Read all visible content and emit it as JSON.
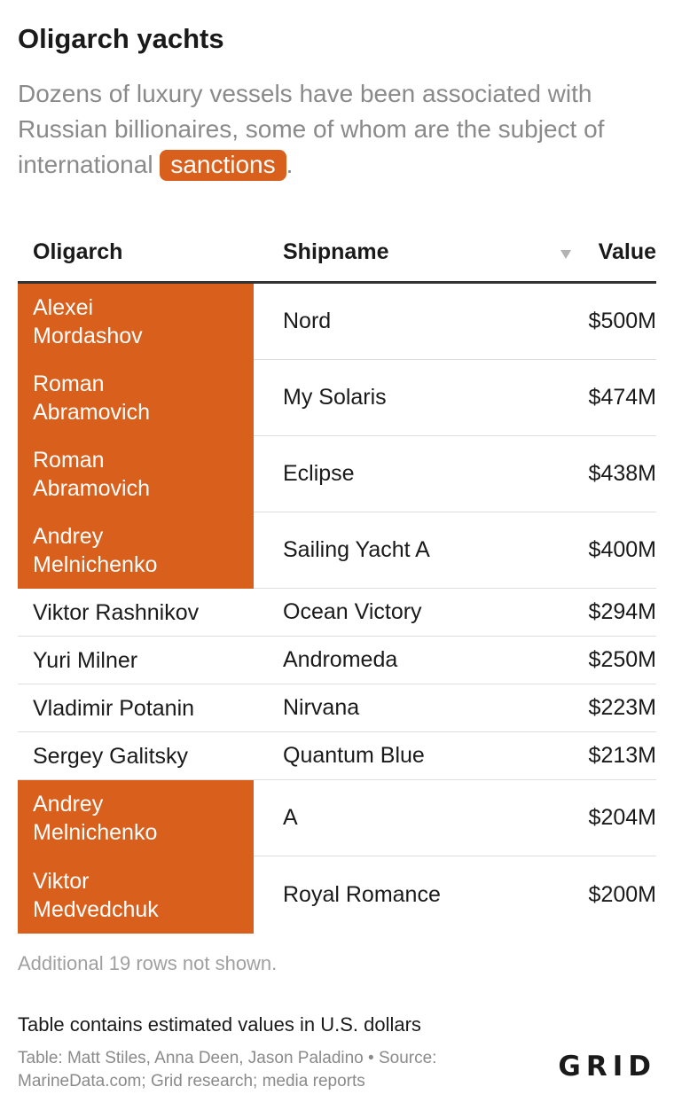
{
  "header": {
    "title": "Oligarch yachts",
    "subtitle_before": "Dozens of luxury vessels have been associated with Russian billionaires, some of whom are the subject of international ",
    "subtitle_highlight": "sanctions",
    "subtitle_after": "."
  },
  "colors": {
    "highlight": "#d95f1c",
    "text": "#1a1a1a",
    "muted": "#8a8a8a"
  },
  "chart_data": {
    "type": "table",
    "columns": [
      "Oligarch",
      "Shipname",
      "Value"
    ],
    "sort_indicator": "sort-down-icon",
    "rows": [
      {
        "oligarch": "Alexei Mordashov",
        "line1": "Alexei",
        "line2": "Mordashov",
        "ship": "Nord",
        "value": "$500M",
        "sanctioned": true
      },
      {
        "oligarch": "Roman Abramovich",
        "line1": "Roman",
        "line2": "Abramovich",
        "ship": "My Solaris",
        "value": "$474M",
        "sanctioned": true
      },
      {
        "oligarch": "Roman Abramovich",
        "line1": "Roman",
        "line2": "Abramovich",
        "ship": "Eclipse",
        "value": "$438M",
        "sanctioned": true
      },
      {
        "oligarch": "Andrey Melnichenko",
        "line1": "Andrey",
        "line2": "Melnichenko",
        "ship": "Sailing Yacht A",
        "value": "$400M",
        "sanctioned": true
      },
      {
        "oligarch": "Viktor Rashnikov",
        "line1": "Viktor Rashnikov",
        "line2": "",
        "ship": "Ocean Victory",
        "value": "$294M",
        "sanctioned": false
      },
      {
        "oligarch": "Yuri Milner",
        "line1": "Yuri Milner",
        "line2": "",
        "ship": "Andromeda",
        "value": "$250M",
        "sanctioned": false
      },
      {
        "oligarch": "Vladimir Potanin",
        "line1": "Vladimir Potanin",
        "line2": "",
        "ship": "Nirvana",
        "value": "$223M",
        "sanctioned": false
      },
      {
        "oligarch": "Sergey Galitsky",
        "line1": "Sergey Galitsky",
        "line2": "",
        "ship": "Quantum Blue",
        "value": "$213M",
        "sanctioned": false
      },
      {
        "oligarch": "Andrey Melnichenko",
        "line1": "Andrey",
        "line2": "Melnichenko",
        "ship": "A",
        "value": "$204M",
        "sanctioned": true
      },
      {
        "oligarch": "Viktor Medvedchuk",
        "line1": "Viktor",
        "line2": "Medvedchuk",
        "ship": "Royal Romance",
        "value": "$200M",
        "sanctioned": true
      }
    ]
  },
  "footer": {
    "more_rows": "Additional 19 rows not shown.",
    "note": "Table contains estimated values in U.S. dollars",
    "credits": "Table: Matt Stiles, Anna Deen, Jason Paladino • Source: MarineData.com; Grid research; media reports",
    "logo": "GRID"
  }
}
